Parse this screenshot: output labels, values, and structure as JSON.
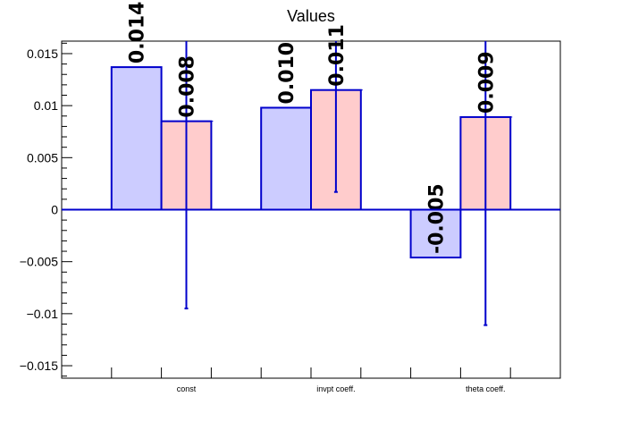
{
  "chart_data": {
    "type": "bar",
    "title": "Values",
    "xlabel": "",
    "ylabel": "",
    "categories": [
      "const",
      "invpt coeff.",
      "theta coeff."
    ],
    "ylim": [
      -0.0162,
      0.0162
    ],
    "yticks": [
      -0.015,
      -0.01,
      -0.005,
      0,
      0.005,
      0.01,
      0.015
    ],
    "ytick_labels": [
      "−0.015",
      "−0.01",
      "−0.005",
      "0",
      "0.005",
      "0.01",
      "0.015"
    ],
    "grid": false,
    "series": [
      {
        "values": [
          0.0137,
          0.0098,
          -0.0046
        ],
        "errors": [
          0,
          0,
          0
        ],
        "labels": [
          "0.014",
          "0.010",
          "-0.005"
        ],
        "fill": "#ccccff",
        "stroke": "#0000cc"
      },
      {
        "values": [
          0.0085,
          0.0115,
          0.0089
        ],
        "errors": [
          0.018,
          0.0098,
          0.02
        ],
        "labels": [
          "0.008",
          "0.011",
          "0.009"
        ],
        "fill": "#ffcccc",
        "stroke": "#0000cc"
      }
    ]
  }
}
